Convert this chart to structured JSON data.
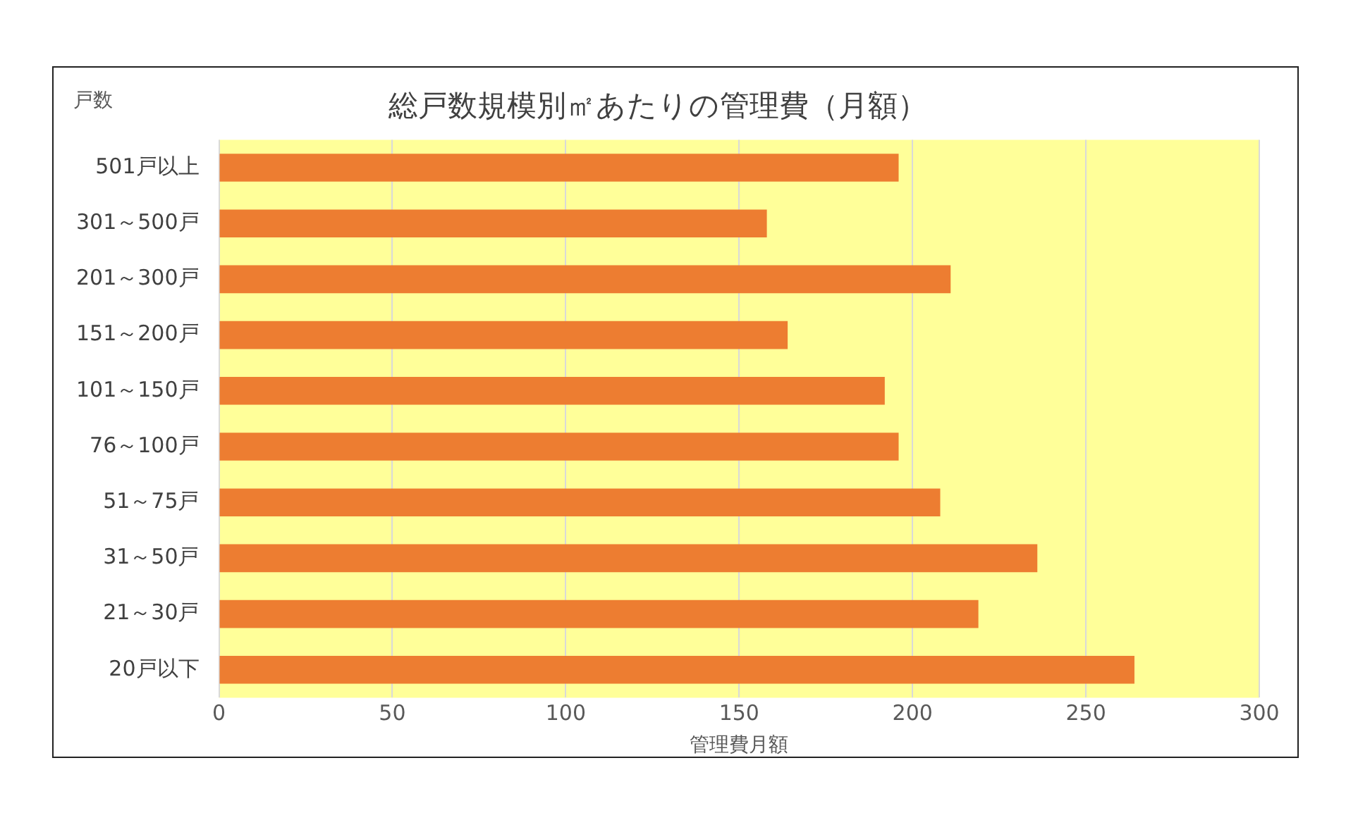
{
  "chart_data": {
    "type": "bar",
    "orientation": "horizontal",
    "title": "総戸数規模別㎡あたりの管理費（月額）",
    "xlabel": "管理費月額",
    "ylabel": "戸数",
    "categories": [
      "501戸以上",
      "301～500戸",
      "201～300戸",
      "151～200戸",
      "101～150戸",
      "76～100戸",
      "51～75戸",
      "31～50戸",
      "21～30戸",
      "20戸以下"
    ],
    "values": [
      196,
      158,
      211,
      164,
      192,
      196,
      208,
      236,
      219,
      264
    ],
    "color": "#ed7d31",
    "xlim": [
      0,
      300
    ],
    "xticks": [
      0,
      50,
      100,
      150,
      200,
      250,
      300
    ],
    "grid": "x",
    "legend": false
  }
}
